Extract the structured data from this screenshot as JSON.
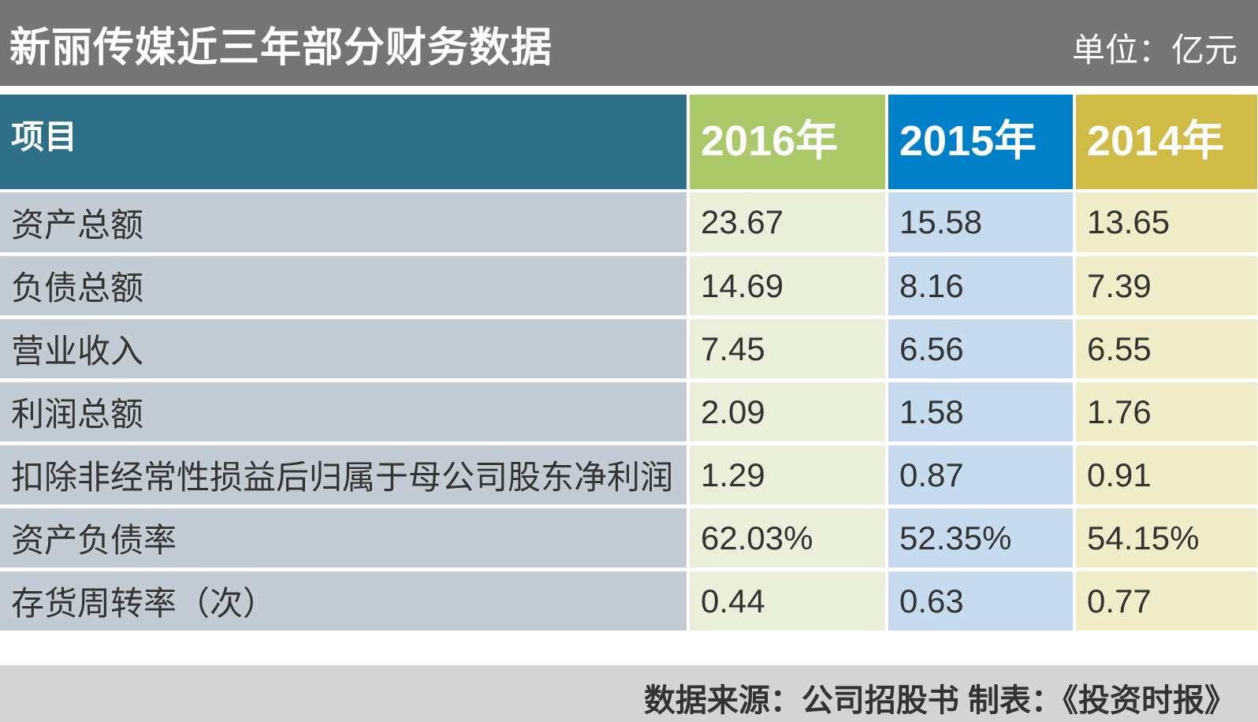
{
  "header": {
    "title": "新丽传媒近三年部分财务数据",
    "unit": "单位：亿元"
  },
  "table": {
    "columns": [
      "项目",
      "2016年",
      "2015年",
      "2014年"
    ],
    "rows": [
      [
        "资产总额",
        "23.67",
        "15.58",
        "13.65"
      ],
      [
        "负债总额",
        "14.69",
        "8.16",
        "7.39"
      ],
      [
        "营业收入",
        "7.45",
        "6.56",
        "6.55"
      ],
      [
        "利润总额",
        "2.09",
        "1.58",
        "1.76"
      ],
      [
        "扣除非经常性损益后归属于母公司股东净利润",
        "1.29",
        "0.87",
        "0.91"
      ],
      [
        "资产负债率",
        "62.03%",
        "52.35%",
        "54.15%"
      ],
      [
        "存货周转率（次）",
        "0.44",
        "0.63",
        "0.77"
      ]
    ]
  },
  "footer": {
    "source": "数据来源：公司招股书  制表：《投资时报》"
  }
}
